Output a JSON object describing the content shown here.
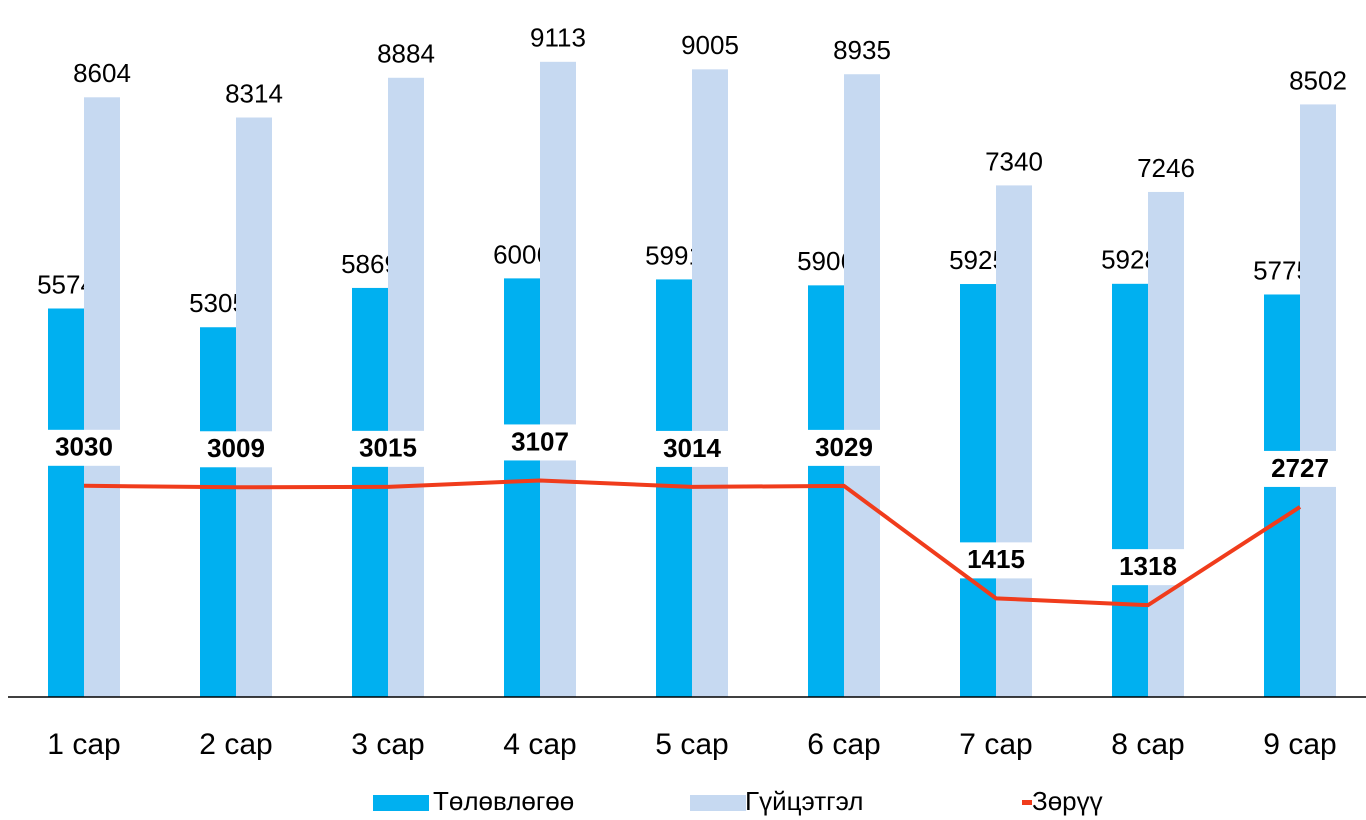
{
  "chart_data": {
    "type": "bar_line",
    "categories": [
      "1 сар",
      "2 сар",
      "3 сар",
      "4 сар",
      "5 сар",
      "6 сар",
      "7 сар",
      "8 сар",
      "9 сар"
    ],
    "series": [
      {
        "name": "Төлөвлөгөө",
        "color": "#00b0f0",
        "type": "bar",
        "values": [
          5574,
          5305,
          5869,
          6006,
          5991,
          5906,
          5925,
          5928,
          5775
        ]
      },
      {
        "name": "Гүйцэтгэл",
        "color": "#c6d9f1",
        "type": "bar",
        "values": [
          8604,
          8314,
          8884,
          9113,
          9005,
          8935,
          7340,
          7246,
          8502
        ]
      },
      {
        "name": "Зөрүү",
        "color": "#f03c1c",
        "type": "line",
        "values": [
          3030,
          3009,
          3015,
          3107,
          3014,
          3029,
          1415,
          1318,
          2727
        ]
      }
    ],
    "ylim": [
      0,
      10000
    ]
  }
}
